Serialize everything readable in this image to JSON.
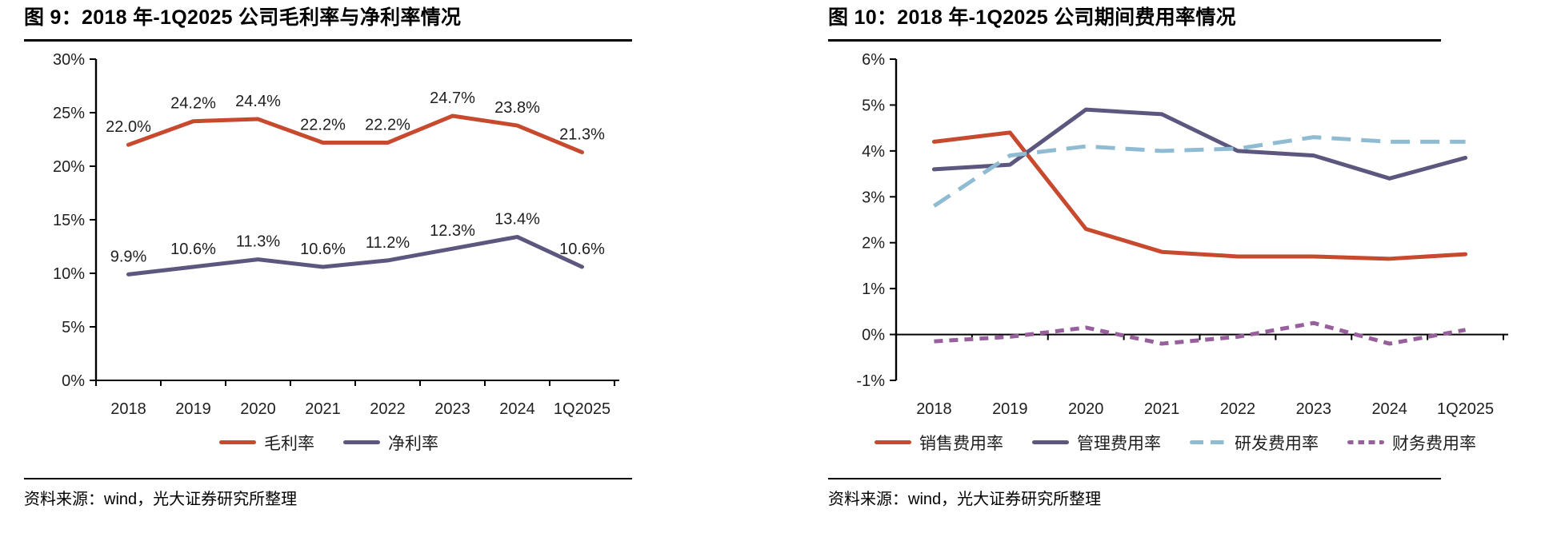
{
  "source_note": "资料来源：wind，光大证券研究所整理",
  "colors": {
    "red": "#C7492E",
    "dark_purple": "#5B577E",
    "light_blue": "#8FBCD2",
    "violet": "#985F9D",
    "axis": "#000000",
    "text": "#1f1f1f"
  },
  "chart_data": [
    {
      "type": "line",
      "title": "图 9：2018 年-1Q2025 公司毛利率与净利率情况",
      "categories": [
        "2018",
        "2019",
        "2020",
        "2021",
        "2022",
        "2023",
        "2024",
        "1Q2025"
      ],
      "ylim": [
        0,
        30
      ],
      "yticks": [
        {
          "v": 30,
          "label": "30%"
        },
        {
          "v": 25,
          "label": "25%"
        },
        {
          "v": 20,
          "label": "20%"
        },
        {
          "v": 15,
          "label": "15%"
        },
        {
          "v": 10,
          "label": "10%"
        },
        {
          "v": 5,
          "label": "5%"
        },
        {
          "v": 0,
          "label": "0%"
        }
      ],
      "grid": false,
      "legend_position": "bottom",
      "show_point_labels": true,
      "series": [
        {
          "name": "毛利率",
          "color": "#C7492E",
          "style": "solid",
          "values": [
            22.0,
            24.2,
            24.4,
            22.2,
            22.2,
            24.7,
            23.8,
            21.3
          ],
          "labels": [
            "22.0%",
            "24.2%",
            "24.4%",
            "22.2%",
            "22.2%",
            "24.7%",
            "23.8%",
            "21.3%"
          ]
        },
        {
          "name": "净利率",
          "color": "#5B577E",
          "style": "solid",
          "values": [
            9.9,
            10.6,
            11.3,
            10.6,
            11.2,
            12.3,
            13.4,
            10.6
          ],
          "labels": [
            "9.9%",
            "10.6%",
            "11.3%",
            "10.6%",
            "11.2%",
            "12.3%",
            "13.4%",
            "10.6%"
          ]
        }
      ]
    },
    {
      "type": "line",
      "title": "图 10：2018 年-1Q2025 公司期间费用率情况",
      "categories": [
        "2018",
        "2019",
        "2020",
        "2021",
        "2022",
        "2023",
        "2024",
        "1Q2025"
      ],
      "ylim": [
        -1,
        6
      ],
      "yticks": [
        {
          "v": 6,
          "label": "6%"
        },
        {
          "v": 5,
          "label": "5%"
        },
        {
          "v": 4,
          "label": "4%"
        },
        {
          "v": 3,
          "label": "3%"
        },
        {
          "v": 2,
          "label": "2%"
        },
        {
          "v": 1,
          "label": "1%"
        },
        {
          "v": 0,
          "label": "0%"
        },
        {
          "v": -1,
          "label": "-1%"
        }
      ],
      "grid": false,
      "legend_position": "bottom",
      "show_point_labels": false,
      "series": [
        {
          "name": "销售费用率",
          "color": "#C7492E",
          "style": "solid",
          "values": [
            4.2,
            4.4,
            2.3,
            1.8,
            1.7,
            1.7,
            1.65,
            1.75
          ]
        },
        {
          "name": "管理费用率",
          "color": "#5B577E",
          "style": "solid",
          "values": [
            3.6,
            3.7,
            4.9,
            4.8,
            4.0,
            3.9,
            3.4,
            3.85
          ]
        },
        {
          "name": "研发费用率",
          "color": "#8FBCD2",
          "style": "dashed",
          "dash": "24 13",
          "values": [
            2.8,
            3.9,
            4.1,
            4.0,
            4.05,
            4.3,
            4.2,
            4.2
          ]
        },
        {
          "name": "财务费用率",
          "color": "#985F9D",
          "style": "dashed",
          "dash": "11 8",
          "values": [
            -0.15,
            -0.05,
            0.15,
            -0.2,
            -0.05,
            0.25,
            -0.2,
            0.1
          ]
        }
      ]
    }
  ]
}
